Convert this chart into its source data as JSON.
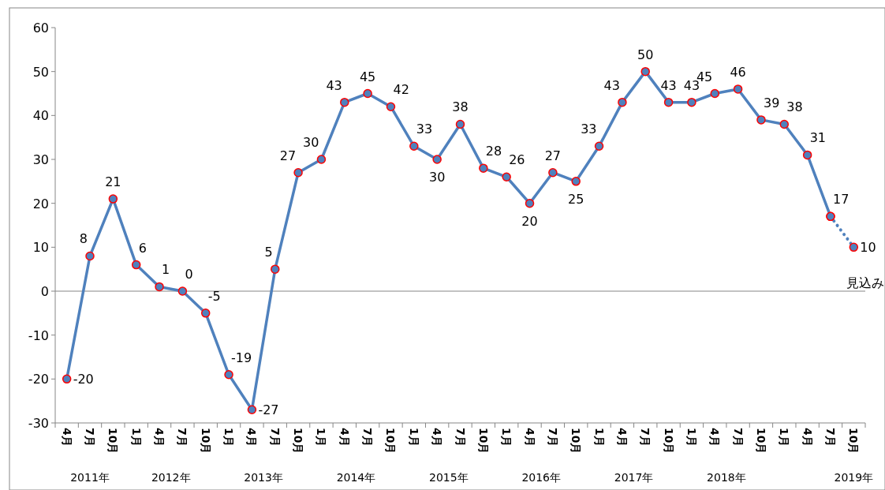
{
  "chart_data": {
    "type": "line",
    "categories": [
      "4月",
      "7月",
      "10月",
      "1月",
      "4月",
      "7月",
      "10月",
      "1月",
      "4月",
      "7月",
      "10月",
      "1月",
      "4月",
      "7月",
      "10月",
      "1月",
      "4月",
      "7月",
      "10月",
      "1月",
      "4月",
      "7月",
      "10月",
      "1月",
      "4月",
      "7月",
      "10月",
      "1月",
      "4月",
      "7月",
      "10月",
      "1月",
      "4月",
      "7月",
      "10月"
    ],
    "series": [
      {
        "color": "#4f81bd",
        "values": [
          -20,
          8,
          21,
          6,
          1,
          0,
          -5,
          -19,
          -27,
          5,
          27,
          30,
          43,
          45,
          42,
          33,
          30,
          38,
          28,
          26,
          20,
          27,
          25,
          33,
          43,
          50,
          43,
          43,
          45,
          46,
          39,
          38,
          31,
          17,
          null
        ],
        "value_labels": [
          "-20",
          "8",
          "21",
          "6",
          "1",
          "0",
          "-5",
          "-19",
          "-27",
          "5",
          "27",
          "30",
          "43",
          "45",
          "42",
          "33",
          "30",
          "38",
          "28",
          "26",
          "20",
          "27",
          "25",
          "33",
          "43",
          "50",
          "43",
          "43",
          "45",
          "46",
          "39",
          "38",
          "31",
          "17",
          null
        ],
        "line_style": "solid",
        "marker": "circle"
      },
      {
        "color": "#4f81bd",
        "values": [
          null,
          null,
          null,
          null,
          null,
          null,
          null,
          null,
          null,
          null,
          null,
          null,
          null,
          null,
          null,
          null,
          null,
          null,
          null,
          null,
          null,
          null,
          null,
          null,
          null,
          null,
          null,
          null,
          null,
          null,
          null,
          null,
          null,
          17,
          10
        ],
        "value_labels": [
          null,
          null,
          null,
          null,
          null,
          null,
          null,
          null,
          null,
          null,
          null,
          null,
          null,
          null,
          null,
          null,
          null,
          null,
          null,
          null,
          null,
          null,
          null,
          null,
          null,
          null,
          null,
          null,
          null,
          null,
          null,
          null,
          null,
          null,
          "10"
        ],
        "line_style": "dotted",
        "marker": "circle"
      }
    ],
    "annotations": [
      "見込み",
      "2011年",
      "2012年",
      "2013年",
      "2014年",
      "2015年",
      "2016年",
      "2017年",
      "2018年",
      "2019年"
    ],
    "ylim": [
      -30,
      60
    ],
    "yticks": [
      -30,
      -20,
      -10,
      0,
      10,
      20,
      30,
      40,
      50,
      60
    ]
  }
}
